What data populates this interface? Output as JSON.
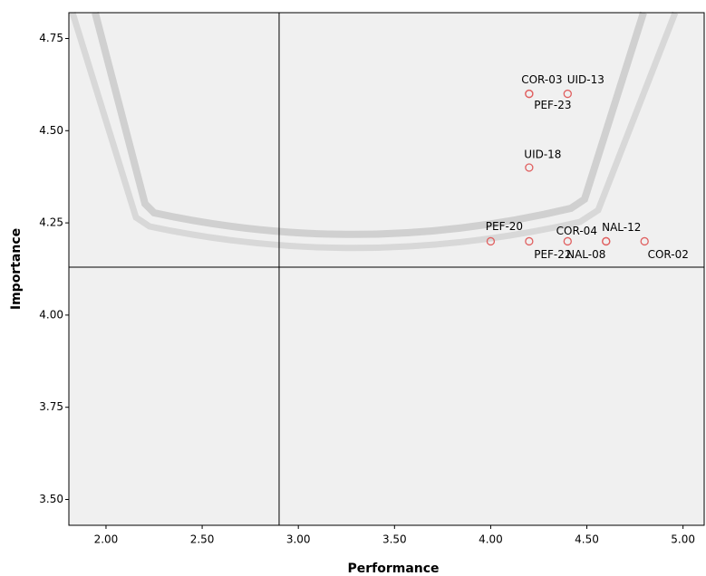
{
  "chart_data": {
    "type": "scatter",
    "x_label": "Performance",
    "y_label": "Importance",
    "color": "#e06060",
    "points": [
      {
        "label": "COR-03",
        "x": 4.2,
        "y": 4.6
      },
      {
        "label": "UID-13",
        "x": 4.4,
        "y": 4.6
      },
      {
        "label": "PEF-23",
        "x": 4.2,
        "y": 4.6
      },
      {
        "label": "UID-18",
        "x": 4.2,
        "y": 4.4
      },
      {
        "label": "PEF-20",
        "x": 4.0,
        "y": 4.2
      },
      {
        "label": "PEF-22",
        "x": 4.2,
        "y": 4.2
      },
      {
        "label": "COR-04",
        "x": 4.4,
        "y": 4.2
      },
      {
        "label": "NAL-12",
        "x": 4.6,
        "y": 4.2
      },
      {
        "label": "NAL-08",
        "x": 4.6,
        "y": 4.2
      },
      {
        "label": "COR-02",
        "x": 4.8,
        "y": 4.2
      }
    ],
    "reference_lines": {
      "x": 2.9,
      "y": 4.13
    },
    "xlim": [
      1.807,
      5.11
    ],
    "ylim": [
      3.43,
      4.82
    ],
    "xticks": [
      {
        "value": 2,
        "label": "2.00"
      },
      {
        "value": 2.5,
        "label": "2.50"
      },
      {
        "value": 3,
        "label": "3.00"
      },
      {
        "value": 3.5,
        "label": "3.50"
      },
      {
        "value": 4,
        "label": "4.00"
      },
      {
        "value": 4.5,
        "label": "4.50"
      },
      {
        "value": 5,
        "label": "5.00"
      }
    ],
    "yticks": [
      {
        "value": 3.5,
        "label": "3.50"
      },
      {
        "value": 3.75,
        "label": "3.75"
      },
      {
        "value": 4,
        "label": "4.00"
      },
      {
        "value": 4.25,
        "label": "4.25"
      },
      {
        "value": 4.5,
        "label": "4.50"
      },
      {
        "value": 4.75,
        "label": "4.75"
      }
    ]
  }
}
